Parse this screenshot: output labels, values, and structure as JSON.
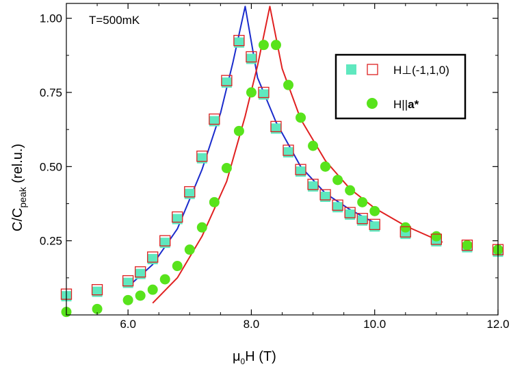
{
  "chart_data": {
    "type": "scatter",
    "annotation": "T=500mK",
    "xlabel": {
      "main": "μ",
      "sub": "0",
      "rest": "H (T)"
    },
    "ylabel": {
      "main": "C/C",
      "sub": "peak",
      "rest": " (rel.u.)"
    },
    "xlim": [
      5.0,
      12.0
    ],
    "ylim": [
      0.0,
      1.05
    ],
    "x_ticks": [
      {
        "value": 6.0,
        "label": "6.0"
      },
      {
        "value": 8.0,
        "label": "8.0"
      },
      {
        "value": 10.0,
        "label": "10.0"
      },
      {
        "value": 12.0,
        "label": "12.0"
      }
    ],
    "y_ticks": [
      {
        "value": 0.25,
        "label": "0.25"
      },
      {
        "value": 0.5,
        "label": "0.50"
      },
      {
        "value": 0.75,
        "label": "0.75"
      },
      {
        "value": 1.0,
        "label": "1.00"
      }
    ],
    "legend": [
      {
        "label": "H⊥(-1,1,0)",
        "series": "perp"
      },
      {
        "label_main": "H||",
        "label_bold": "a*",
        "series": "para"
      }
    ],
    "colors": {
      "open_square": "#dd1f1f",
      "filled_square": "#5fe8bf",
      "circle": "#58e31c",
      "fit_perp": "#1a2bcc",
      "fit_para": "#e02020"
    },
    "series": [
      {
        "name": "H⊥(-1,1,0)",
        "marker": "square",
        "points": [
          [
            5.0,
            0.07
          ],
          [
            5.5,
            0.085
          ],
          [
            6.0,
            0.115
          ],
          [
            6.2,
            0.145
          ],
          [
            6.4,
            0.195
          ],
          [
            6.6,
            0.25
          ],
          [
            6.8,
            0.33
          ],
          [
            7.0,
            0.415
          ],
          [
            7.2,
            0.535
          ],
          [
            7.4,
            0.66
          ],
          [
            7.6,
            0.79
          ],
          [
            7.8,
            0.925
          ],
          [
            8.0,
            0.87
          ],
          [
            8.2,
            0.75
          ],
          [
            8.4,
            0.635
          ],
          [
            8.6,
            0.555
          ],
          [
            8.8,
            0.49
          ],
          [
            9.0,
            0.44
          ],
          [
            9.2,
            0.405
          ],
          [
            9.4,
            0.37
          ],
          [
            9.6,
            0.345
          ],
          [
            9.8,
            0.325
          ],
          [
            10.0,
            0.305
          ],
          [
            10.5,
            0.28
          ],
          [
            11.0,
            0.255
          ],
          [
            11.5,
            0.235
          ],
          [
            12.0,
            0.22
          ]
        ]
      },
      {
        "name": "H||a*",
        "marker": "circle",
        "points": [
          [
            5.0,
            0.01
          ],
          [
            5.5,
            0.02
          ],
          [
            6.0,
            0.05
          ],
          [
            6.2,
            0.065
          ],
          [
            6.4,
            0.085
          ],
          [
            6.6,
            0.12
          ],
          [
            6.8,
            0.165
          ],
          [
            7.0,
            0.22
          ],
          [
            7.2,
            0.295
          ],
          [
            7.4,
            0.38
          ],
          [
            7.6,
            0.495
          ],
          [
            7.8,
            0.62
          ],
          [
            8.0,
            0.75
          ],
          [
            8.2,
            0.91
          ],
          [
            8.4,
            0.91
          ],
          [
            8.6,
            0.775
          ],
          [
            8.8,
            0.665
          ],
          [
            9.0,
            0.57
          ],
          [
            9.2,
            0.5
          ],
          [
            9.4,
            0.455
          ],
          [
            9.6,
            0.42
          ],
          [
            9.8,
            0.38
          ],
          [
            10.0,
            0.35
          ],
          [
            10.5,
            0.295
          ],
          [
            11.0,
            0.265
          ],
          [
            11.5,
            0.235
          ],
          [
            12.0,
            0.22
          ]
        ]
      }
    ],
    "fits": [
      {
        "name": "fit H⊥(-1,1,0)",
        "color_key": "fit_perp",
        "points": [
          [
            6.0,
            0.095
          ],
          [
            6.4,
            0.17
          ],
          [
            6.8,
            0.29
          ],
          [
            7.2,
            0.49
          ],
          [
            7.5,
            0.68
          ],
          [
            7.7,
            0.85
          ],
          [
            7.9,
            1.04
          ],
          [
            8.1,
            0.8
          ],
          [
            8.4,
            0.65
          ],
          [
            8.8,
            0.5
          ],
          [
            9.2,
            0.41
          ],
          [
            9.6,
            0.355
          ],
          [
            10.0,
            0.31
          ]
        ]
      },
      {
        "name": "fit H||a*",
        "color_key": "fit_para",
        "points": [
          [
            6.4,
            0.04
          ],
          [
            6.8,
            0.125
          ],
          [
            7.2,
            0.265
          ],
          [
            7.6,
            0.45
          ],
          [
            7.9,
            0.67
          ],
          [
            8.1,
            0.84
          ],
          [
            8.3,
            1.04
          ],
          [
            8.5,
            0.83
          ],
          [
            8.8,
            0.66
          ],
          [
            9.2,
            0.52
          ],
          [
            9.6,
            0.425
          ],
          [
            10.0,
            0.36
          ],
          [
            10.5,
            0.3
          ],
          [
            11.1,
            0.245
          ]
        ]
      }
    ]
  }
}
